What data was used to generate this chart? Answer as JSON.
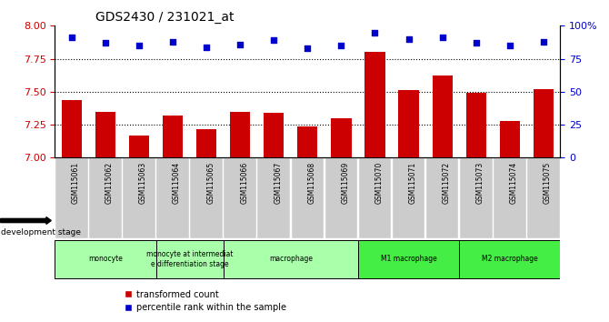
{
  "title": "GDS2430 / 231021_at",
  "samples": [
    "GSM115061",
    "GSM115062",
    "GSM115063",
    "GSM115064",
    "GSM115065",
    "GSM115066",
    "GSM115067",
    "GSM115068",
    "GSM115069",
    "GSM115070",
    "GSM115071",
    "GSM115072",
    "GSM115073",
    "GSM115074",
    "GSM115075"
  ],
  "bar_values": [
    7.44,
    7.35,
    7.17,
    7.32,
    7.22,
    7.35,
    7.34,
    7.24,
    7.3,
    7.8,
    7.51,
    7.62,
    7.49,
    7.28,
    7.52
  ],
  "dot_values": [
    91,
    87,
    85,
    88,
    84,
    86,
    89,
    83,
    85,
    95,
    90,
    91,
    87,
    85,
    88
  ],
  "bar_color": "#cc0000",
  "dot_color": "#0000cc",
  "ylim_left": [
    7.0,
    8.0
  ],
  "ylim_right": [
    0,
    100
  ],
  "yticks_left": [
    7.0,
    7.25,
    7.5,
    7.75,
    8.0
  ],
  "yticks_right": [
    0,
    25,
    50,
    75,
    100
  ],
  "ytick_labels_right": [
    "0",
    "25",
    "50",
    "75",
    "100%"
  ],
  "hlines": [
    7.25,
    7.5,
    7.75
  ],
  "group_row": [
    {
      "label": "monocyte",
      "start": 0,
      "end": 3,
      "color": "#aaffaa"
    },
    {
      "label": "monocyte at intermediat\ne differentiation stage",
      "start": 3,
      "end": 5,
      "color": "#aaffaa"
    },
    {
      "label": "macrophage",
      "start": 5,
      "end": 9,
      "color": "#aaffaa"
    },
    {
      "label": "M1 macrophage",
      "start": 9,
      "end": 12,
      "color": "#44ee44"
    },
    {
      "label": "M2 macrophage",
      "start": 12,
      "end": 15,
      "color": "#44ee44"
    }
  ],
  "dev_stage_label": "development stage",
  "legend_bar_label": "transformed count",
  "legend_dot_label": "percentile rank within the sample",
  "bar_width": 0.6,
  "tick_label_color_left": "#cc0000",
  "tick_label_color_right": "#0000cc",
  "xlabel_bg": "#cccccc"
}
